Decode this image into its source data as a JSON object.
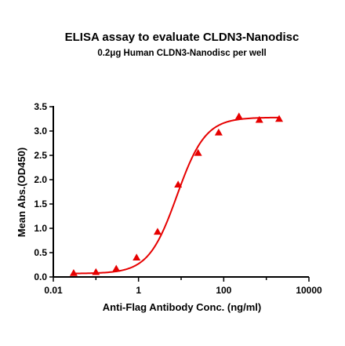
{
  "chart_data": {
    "type": "scatter",
    "title": "ELISA assay to evaluate CLDN3-Nanodisc",
    "subtitle": "0.2μg Human CLDN3-Nanodisc per well",
    "xlabel": "Anti-Flag Antibody Conc. (ng/ml)",
    "ylabel": "Mean Abs.(OD450)",
    "x_scale": "log",
    "xlim": [
      0.01,
      10000
    ],
    "ylim": [
      0,
      3.5
    ],
    "x_ticks": [
      0.01,
      1,
      100,
      10000
    ],
    "x_tick_labels": [
      "0.01",
      "1",
      "100",
      "10000"
    ],
    "y_ticks": [
      0,
      0.5,
      1,
      1.5,
      2,
      2.5,
      3,
      3.5
    ],
    "y_tick_labels": [
      "0.0",
      "0.5",
      "1.0",
      "1.5",
      "2.0",
      "2.5",
      "3.0",
      "3.5"
    ],
    "grid": false,
    "legend": "none",
    "marker": "triangle",
    "color": "#e60000",
    "series": [
      {
        "x": [
          0.03,
          0.1,
          0.3,
          0.9,
          2.8,
          8.5,
          25,
          76,
          228,
          685,
          2000
        ],
        "y": [
          0.08,
          0.1,
          0.17,
          0.4,
          0.93,
          1.9,
          2.55,
          2.97,
          3.3,
          3.23,
          3.25
        ]
      }
    ],
    "fit_curve": {
      "type": "4PL",
      "bottom": 0.07,
      "top": 3.28,
      "ec50": 8.0,
      "hill": 1.3
    }
  }
}
